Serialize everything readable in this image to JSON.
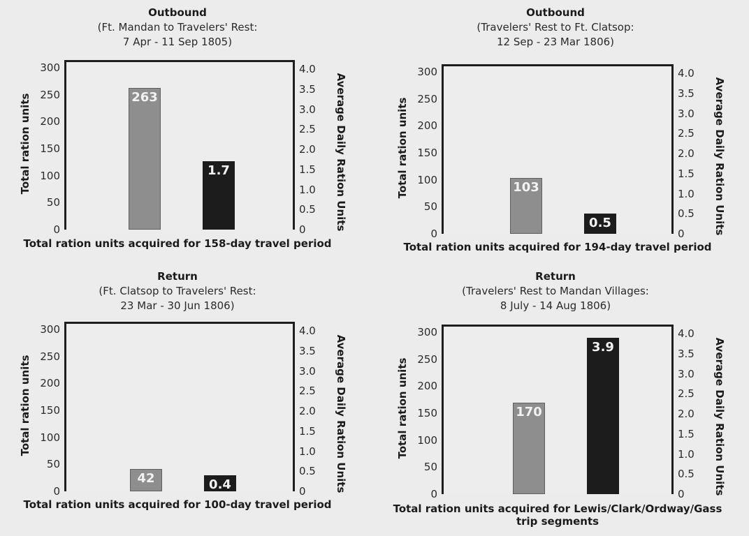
{
  "chart_data": [
    {
      "type": "bar",
      "title": "Outbound",
      "subtitle": [
        "(Ft. Mandan to Travelers' Rest:",
        "7 Apr - 11 Sep 1805)"
      ],
      "xlabel": "Total ration units acquired for 158-day travel period",
      "ylabel_left": "Total ration units",
      "ylabel_right": "Average Daily Ration Units",
      "ylim_left": [
        0,
        300
      ],
      "ylim_right": [
        0,
        4.0
      ],
      "ticks_left": [
        "0",
        "50",
        "100",
        "150",
        "200",
        "250",
        "300"
      ],
      "ticks_right": [
        "0",
        "0.5",
        "1.0",
        "1.5",
        "2.0",
        "2.5",
        "3.0",
        "3.5",
        "4.0"
      ],
      "total_ration_units": 263,
      "total_label": "263",
      "average_daily": 1.7,
      "daily_label": "1.7"
    },
    {
      "type": "bar",
      "title": "Outbound",
      "subtitle": [
        "(Travelers' Rest to Ft. Clatsop:",
        "12 Sep - 23 Mar 1806)"
      ],
      "xlabel": "Total ration units acquired for 194-day travel period",
      "ylabel_left": "Total ration units",
      "ylabel_right": "Average Daily Ration Units",
      "ylim_left": [
        0,
        300
      ],
      "ylim_right": [
        0,
        4.0
      ],
      "ticks_left": [
        "0",
        "50",
        "100",
        "150",
        "200",
        "250",
        "300"
      ],
      "ticks_right": [
        "0",
        "0.5",
        "1.0",
        "1.5",
        "2.0",
        "2.5",
        "3.0",
        "3.5",
        "4.0"
      ],
      "total_ration_units": 103,
      "total_label": "103",
      "average_daily": 0.5,
      "daily_label": "0.5"
    },
    {
      "type": "bar",
      "title": "Return",
      "subtitle": [
        "(Ft. Clatsop to Travelers' Rest:",
        "23 Mar - 30 Jun 1806)"
      ],
      "xlabel": "Total ration units acquired for 100-day travel period",
      "ylabel_left": "Total ration units",
      "ylabel_right": "Average Daily Ration Units",
      "ylim_left": [
        0,
        300
      ],
      "ylim_right": [
        0,
        4.0
      ],
      "ticks_left": [
        "0",
        "50",
        "100",
        "150",
        "200",
        "250",
        "300"
      ],
      "ticks_right": [
        "0",
        "0.5",
        "1.0",
        "1.5",
        "2.0",
        "2.5",
        "3.0",
        "3.5",
        "4.0"
      ],
      "total_ration_units": 42,
      "total_label": "42",
      "average_daily": 0.4,
      "daily_label": "0.4"
    },
    {
      "type": "bar",
      "title": "Return",
      "subtitle": [
        "(Travelers' Rest to Mandan Villages:",
        "8 July - 14 Aug 1806)"
      ],
      "xlabel": [
        "Total ration units acquired for Lewis/Clark/Ordway/Gass",
        "trip segments"
      ],
      "ylabel_left": "Total ration units",
      "ylabel_right": "Average Daily Ration Units",
      "ylim_left": [
        0,
        300
      ],
      "ylim_right": [
        0,
        4.0
      ],
      "ticks_left": [
        "0",
        "50",
        "100",
        "150",
        "200",
        "250",
        "300"
      ],
      "ticks_right": [
        "0",
        "0.5",
        "1.0",
        "1.5",
        "2.0",
        "2.5",
        "3.0",
        "3.5",
        "4.0"
      ],
      "total_ration_units": 170,
      "total_label": "170",
      "average_daily": 3.9,
      "daily_label": "3.9"
    }
  ]
}
